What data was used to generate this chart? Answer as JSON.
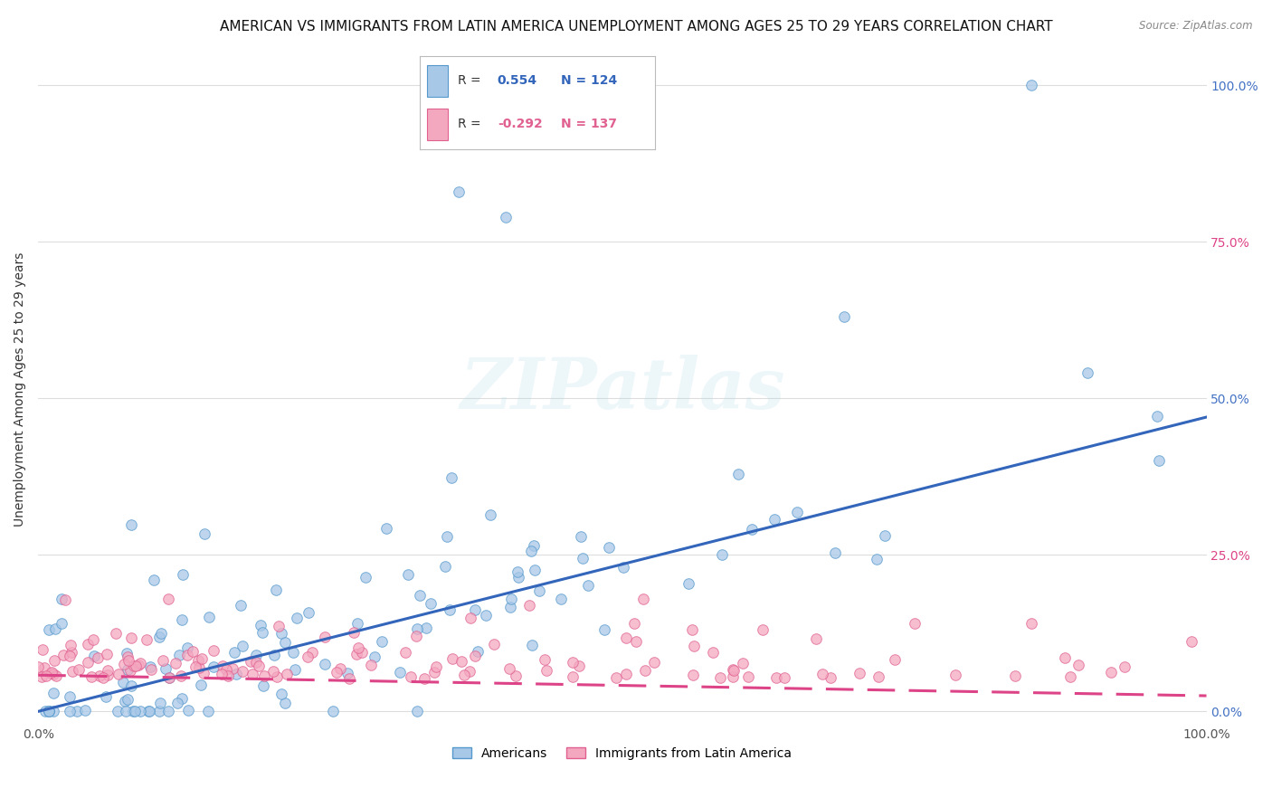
{
  "title": "AMERICAN VS IMMIGRANTS FROM LATIN AMERICA UNEMPLOYMENT AMONG AGES 25 TO 29 YEARS CORRELATION CHART",
  "source": "Source: ZipAtlas.com",
  "ylabel": "Unemployment Among Ages 25 to 29 years",
  "xlim": [
    0,
    1
  ],
  "ylim": [
    -0.02,
    1.05
  ],
  "xtick_labels": [
    "0.0%",
    "100.0%"
  ],
  "ytick_labels_right": [
    "0.0%",
    "25.0%",
    "50.0%",
    "75.0%",
    "100.0%"
  ],
  "ytick_positions": [
    0.0,
    0.25,
    0.5,
    0.75,
    1.0
  ],
  "xtick_positions": [
    0.0,
    1.0
  ],
  "r_american": 0.554,
  "n_american": 124,
  "r_immigrant": -0.292,
  "n_immigrant": 137,
  "blue_scatter_color": "#a8c8e8",
  "blue_edge_color": "#5599cc",
  "pink_scatter_color": "#f4a8c0",
  "pink_edge_color": "#e06090",
  "blue_line_color": "#3366bb",
  "pink_line_color": "#dd4488",
  "legend_labels": [
    "Americans",
    "Immigrants from Latin America"
  ],
  "watermark": "ZIPatlas",
  "background_color": "#ffffff",
  "grid_color": "#dddddd",
  "title_fontsize": 11,
  "ylabel_fontsize": 10,
  "tick_fontsize": 10,
  "right_tick_colors": [
    "#4472c4",
    "#dd4488",
    "#4472c4",
    "#dd4488",
    "#4472c4"
  ],
  "legend_r_blue": "0.554",
  "legend_n_blue": "124",
  "legend_r_pink": "-0.292",
  "legend_n_pink": "137"
}
